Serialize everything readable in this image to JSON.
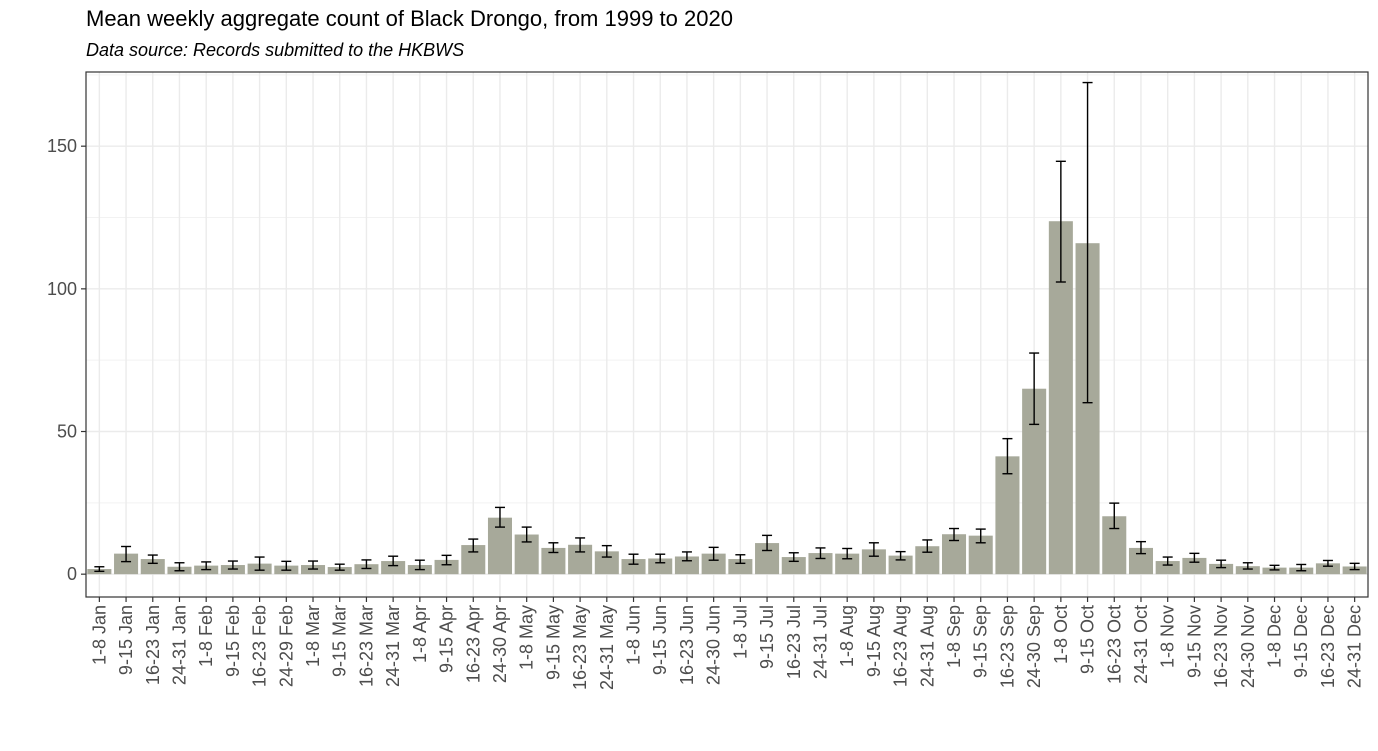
{
  "chart_data": {
    "type": "bar",
    "title": "Mean weekly aggregate count of Black Drongo, from 1999 to 2020",
    "subtitle": "Data source: Records submitted to the HKBWS",
    "xlabel": "",
    "ylabel": "",
    "ylim": [
      -8,
      176
    ],
    "yticks": [
      0,
      50,
      100,
      150
    ],
    "grid": true,
    "bar_color": "#a7a99a",
    "categories": [
      "1-8 Jan",
      "9-15 Jan",
      "16-23 Jan",
      "24-31 Jan",
      "1-8 Feb",
      "9-15 Feb",
      "16-23 Feb",
      "24-29 Feb",
      "1-8 Mar",
      "9-15 Mar",
      "16-23 Mar",
      "24-31 Mar",
      "1-8 Apr",
      "9-15 Apr",
      "16-23 Apr",
      "24-30 Apr",
      "1-8 May",
      "9-15 May",
      "16-23 May",
      "24-31 May",
      "1-8 Jun",
      "9-15 Jun",
      "16-23 Jun",
      "24-30 Jun",
      "1-8 Jul",
      "9-15 Jul",
      "16-23 Jul",
      "24-31 Jul",
      "1-8 Aug",
      "9-15 Aug",
      "16-23 Aug",
      "24-31 Aug",
      "1-8 Sep",
      "9-15 Sep",
      "16-23 Sep",
      "24-30 Sep",
      "1-8 Oct",
      "9-15 Oct",
      "16-23 Oct",
      "24-31 Oct",
      "1-8 Nov",
      "9-15 Nov",
      "16-23 Nov",
      "24-30 Nov",
      "1-8 Dec",
      "9-15 Dec",
      "16-23 Dec",
      "24-31 Dec"
    ],
    "values": [
      1.8,
      7.2,
      5.3,
      2.6,
      3.0,
      3.2,
      3.7,
      3.0,
      3.2,
      2.5,
      3.5,
      4.6,
      3.2,
      5.0,
      10.2,
      19.8,
      13.9,
      9.2,
      10.3,
      8.0,
      5.3,
      5.5,
      6.2,
      7.2,
      5.3,
      10.9,
      6.0,
      7.4,
      7.2,
      8.7,
      6.5,
      9.8,
      14.0,
      13.5,
      41.3,
      65.0,
      123.7,
      116.0,
      20.3,
      9.2,
      4.6,
      5.7,
      3.6,
      2.8,
      2.3,
      2.3,
      3.8,
      2.7
    ],
    "err_low": [
      1.0,
      4.4,
      3.8,
      1.2,
      1.6,
      1.8,
      1.4,
      1.4,
      1.8,
      1.4,
      2.0,
      3.0,
      1.6,
      3.3,
      7.8,
      16.5,
      11.3,
      7.6,
      7.8,
      6.0,
      3.5,
      4.0,
      4.7,
      4.9,
      3.8,
      8.3,
      4.5,
      5.5,
      5.4,
      6.3,
      5.0,
      7.7,
      11.8,
      11.0,
      35.2,
      52.5,
      102.4,
      60.1,
      16.0,
      7.2,
      3.2,
      4.2,
      2.3,
      1.8,
      1.5,
      1.2,
      2.8,
      1.6
    ],
    "err_high": [
      2.6,
      9.7,
      6.7,
      4.0,
      4.3,
      4.6,
      6.0,
      4.5,
      4.6,
      3.5,
      5.0,
      6.3,
      4.9,
      6.6,
      12.3,
      23.4,
      16.5,
      11.0,
      12.7,
      10.0,
      7.0,
      7.0,
      7.8,
      9.4,
      6.8,
      13.6,
      7.5,
      9.2,
      9.0,
      11.0,
      7.9,
      12.0,
      16.0,
      15.8,
      47.5,
      77.5,
      144.7,
      172.3,
      24.9,
      11.4,
      6.0,
      7.3,
      4.9,
      4.0,
      3.1,
      3.4,
      4.8,
      3.8
    ]
  }
}
